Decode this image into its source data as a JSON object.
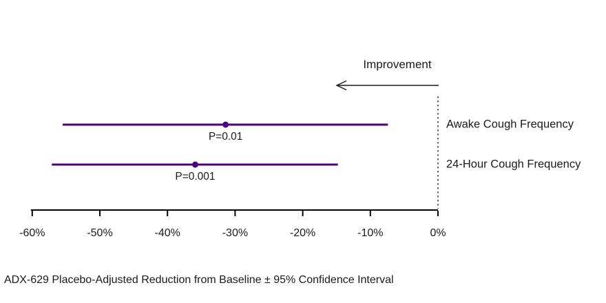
{
  "colors": {
    "ci_line": "#4b0082",
    "axis": "#000000",
    "text": "#1a1a1a"
  },
  "chart_data": {
    "type": "scatter",
    "subtype": "horizontal-forest-plot-with-confidence-intervals",
    "annotation": "Improvement",
    "improvement_direction": "left",
    "series": [
      {
        "label": "Awake Cough Frequency",
        "estimate": -31.4,
        "ci_low": -55.5,
        "ci_high": -7.4,
        "p_label": "P=0.01"
      },
      {
        "label": "24-Hour Cough Frequency",
        "estimate": -35.9,
        "ci_low": -57.1,
        "ci_high": -14.8,
        "p_label": "P=0.001"
      }
    ],
    "x_ticks": [
      -60,
      -50,
      -40,
      -30,
      -20,
      -10,
      0
    ],
    "x_tick_labels": [
      "-60%",
      "-50%",
      "-40%",
      "-30%",
      "-20%",
      "-10%",
      "0%"
    ],
    "xlim": [
      -60,
      0
    ],
    "reference_line_at": 0,
    "reference_line_style": "dotted",
    "grid": "off",
    "legend": "none",
    "caption": "ADX-629 Placebo-Adjusted Reduction from Baseline ± 95% Confidence Interval"
  }
}
